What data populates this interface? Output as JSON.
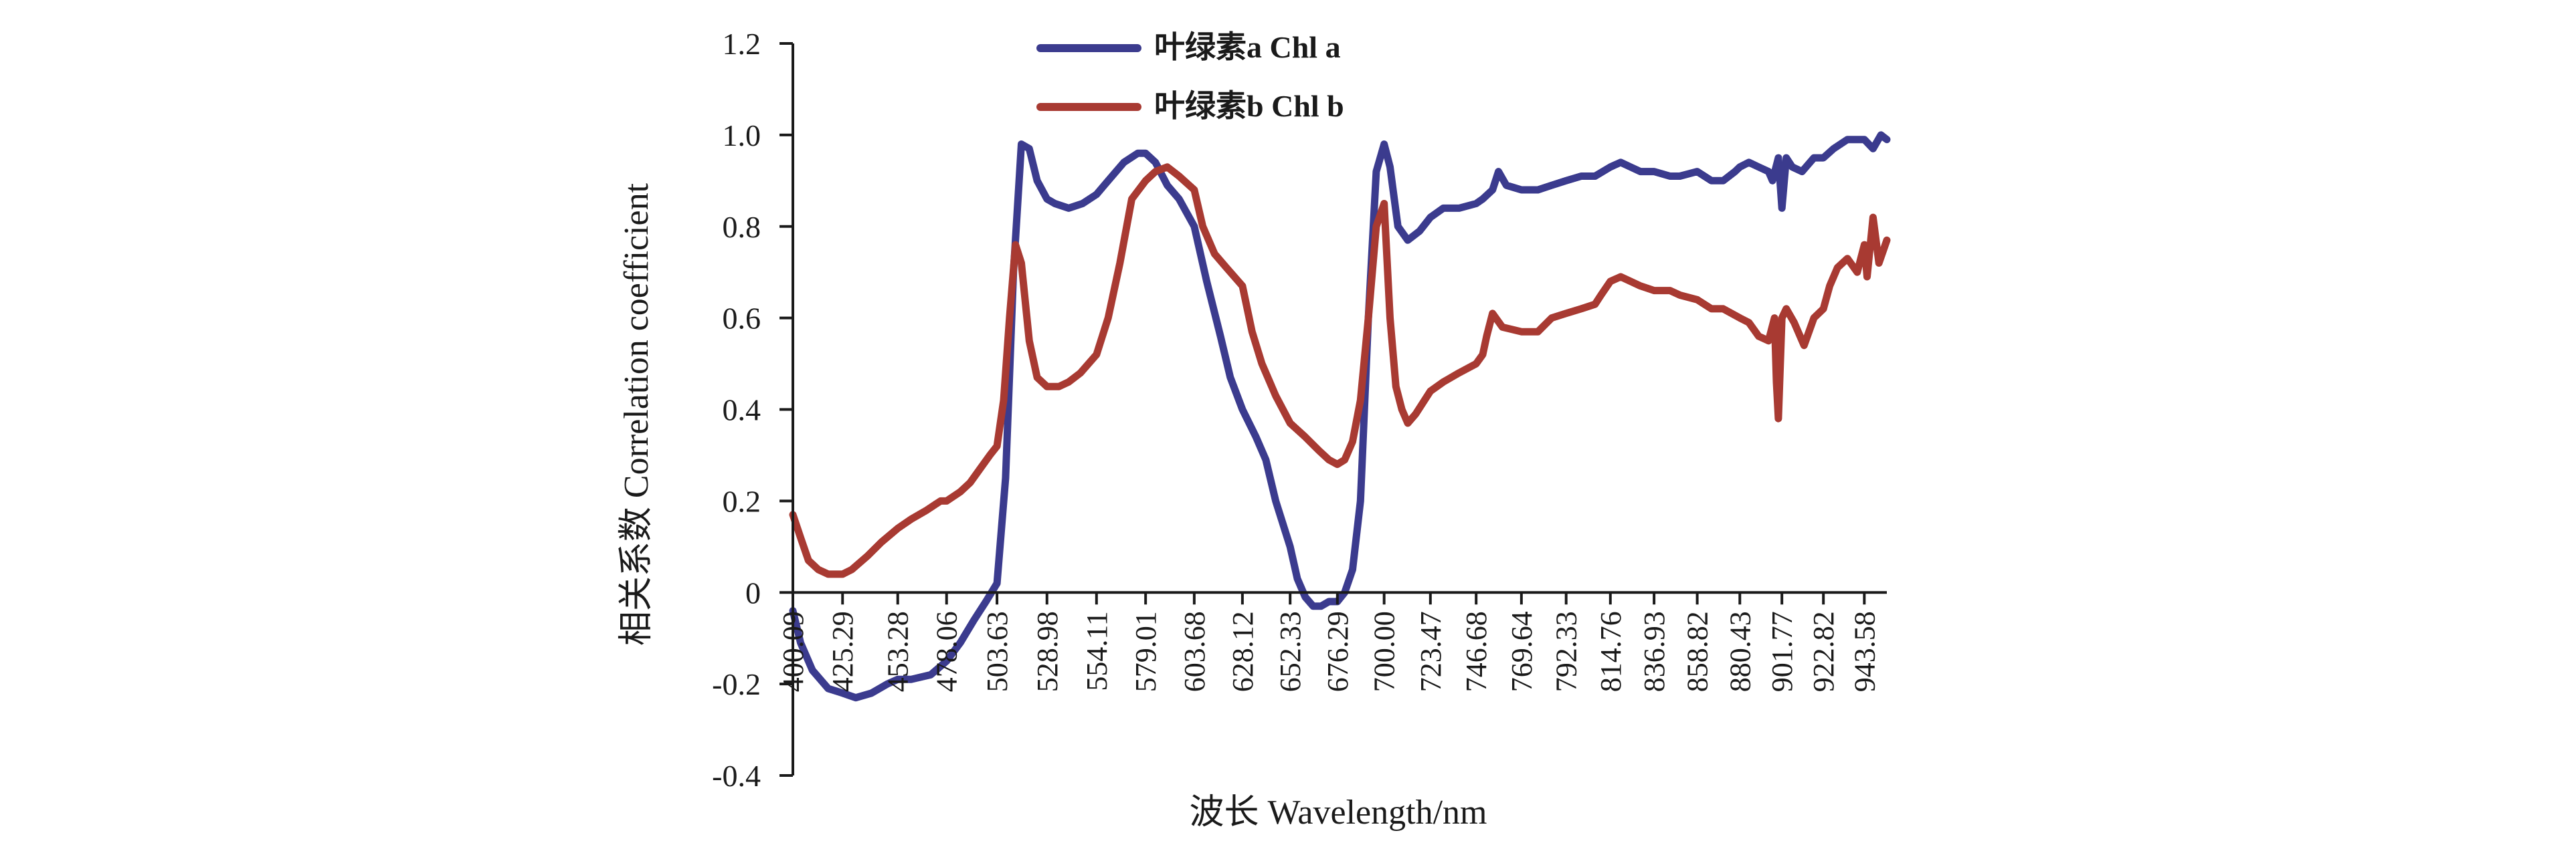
{
  "chart_data": {
    "type": "line",
    "title": "",
    "xlabel": "波长 Wavelength/nm",
    "ylabel": "相关系数 Correlation coefficient",
    "ylim": [
      -0.4,
      1.2
    ],
    "xlim": [
      400.09,
      955
    ],
    "y_ticks": [
      -0.4,
      -0.2,
      0,
      0.2,
      0.4,
      0.6,
      0.8,
      1.0,
      1.2
    ],
    "y_tick_labels": [
      "-0.4",
      "-0.2",
      "0",
      "0.2",
      "0.4",
      "0.6",
      "0.8",
      "1.0",
      "1.2"
    ],
    "x_ticks": [
      400.09,
      425.29,
      453.28,
      478.06,
      503.63,
      528.98,
      554.11,
      579.01,
      603.68,
      628.12,
      652.33,
      676.29,
      700.0,
      723.47,
      746.68,
      769.64,
      792.33,
      814.76,
      836.93,
      858.82,
      880.43,
      901.77,
      922.82,
      943.58
    ],
    "x_tick_labels": [
      "400.09",
      "425.29",
      "453.28",
      "478.06",
      "503.63",
      "528.98",
      "554.11",
      "579.01",
      "603.68",
      "628.12",
      "652.33",
      "676.29",
      "700.00",
      "723.47",
      "746.68",
      "769.64",
      "792.33",
      "814.76",
      "836.93",
      "858.82",
      "880.43",
      "901.77",
      "922.82",
      "943.58"
    ],
    "grid": false,
    "legend_position": "top-center",
    "series": [
      {
        "name": "叶绿素a Chl a",
        "color": "#3b3b8e",
        "x": [
          400.09,
          404,
          410,
          418,
          425.29,
          432,
          440,
          448,
          453.28,
          460,
          470,
          478.06,
          485,
          492,
          498,
          503.63,
          508,
          512,
          516,
          520,
          524,
          528.98,
          533,
          540,
          547,
          554.11,
          560,
          568,
          575,
          579.01,
          584,
          590,
          596,
          603.68,
          610,
          617,
          622,
          628.12,
          635,
          640,
          645,
          652.33,
          656,
          660,
          664,
          668,
          672,
          676.29,
          680,
          684,
          688,
          692,
          696,
          700.0,
          703,
          707,
          712,
          718,
          723.47,
          730,
          738,
          746.68,
          750,
          755,
          758,
          762,
          769.64,
          778,
          785,
          792.33,
          800,
          807,
          814.76,
          820,
          825,
          830,
          836.93,
          845,
          850,
          858.82,
          866,
          872,
          878,
          880.43,
          885,
          890,
          895,
          897,
          900,
          901.77,
          904,
          907,
          912,
          918,
          922.82,
          928,
          935,
          943.58,
          948,
          952,
          955
        ],
        "values": [
          -0.04,
          -0.11,
          -0.17,
          -0.21,
          -0.22,
          -0.23,
          -0.22,
          -0.2,
          -0.19,
          -0.19,
          -0.18,
          -0.15,
          -0.11,
          -0.06,
          -0.02,
          0.02,
          0.25,
          0.7,
          0.98,
          0.97,
          0.9,
          0.86,
          0.85,
          0.84,
          0.85,
          0.87,
          0.9,
          0.94,
          0.96,
          0.96,
          0.94,
          0.89,
          0.86,
          0.8,
          0.68,
          0.56,
          0.47,
          0.4,
          0.34,
          0.29,
          0.2,
          0.1,
          0.03,
          -0.01,
          -0.03,
          -0.03,
          -0.02,
          -0.02,
          0.0,
          0.05,
          0.2,
          0.6,
          0.92,
          0.98,
          0.93,
          0.8,
          0.77,
          0.79,
          0.82,
          0.84,
          0.84,
          0.85,
          0.86,
          0.88,
          0.92,
          0.89,
          0.88,
          0.88,
          0.89,
          0.9,
          0.91,
          0.91,
          0.93,
          0.94,
          0.93,
          0.92,
          0.92,
          0.91,
          0.91,
          0.92,
          0.9,
          0.9,
          0.92,
          0.93,
          0.94,
          0.93,
          0.92,
          0.9,
          0.95,
          0.84,
          0.95,
          0.93,
          0.92,
          0.95,
          0.95,
          0.97,
          0.99,
          0.99,
          0.97,
          1.0,
          0.99
        ]
      },
      {
        "name": "叶绿素b Chl b",
        "color": "#a83a32",
        "x": [
          400.09,
          404,
          408,
          413,
          418,
          425.29,
          430,
          438,
          445,
          453.28,
          460,
          468,
          475,
          478.06,
          485,
          490,
          495,
          500,
          503.63,
          507,
          510,
          513,
          516,
          520,
          524,
          528.98,
          535,
          540,
          546,
          554.11,
          560,
          566,
          572,
          579.01,
          584,
          590,
          596,
          603.68,
          608,
          614,
          620,
          628.12,
          633,
          638,
          645,
          652.33,
          660,
          667,
          672,
          676.29,
          680,
          684,
          688,
          692,
          696,
          700.0,
          703,
          706,
          709,
          712,
          716,
          723.47,
          730,
          738,
          746.68,
          750,
          752,
          755,
          760,
          769.64,
          778,
          785,
          792.33,
          800,
          807,
          810,
          814.76,
          820,
          825,
          830,
          836.93,
          845,
          850,
          858.82,
          866,
          872,
          880.43,
          885,
          890,
          895,
          898,
          899,
          900,
          901.77,
          904,
          908,
          913,
          918,
          922.82,
          926,
          930,
          935,
          940,
          943.58,
          945,
          948,
          951,
          955
        ],
        "values": [
          0.17,
          0.12,
          0.07,
          0.05,
          0.04,
          0.04,
          0.05,
          0.08,
          0.11,
          0.14,
          0.16,
          0.18,
          0.2,
          0.2,
          0.22,
          0.24,
          0.27,
          0.3,
          0.32,
          0.42,
          0.6,
          0.76,
          0.72,
          0.55,
          0.47,
          0.45,
          0.45,
          0.46,
          0.48,
          0.52,
          0.6,
          0.72,
          0.86,
          0.9,
          0.92,
          0.93,
          0.91,
          0.88,
          0.8,
          0.74,
          0.71,
          0.67,
          0.57,
          0.5,
          0.43,
          0.37,
          0.34,
          0.31,
          0.29,
          0.28,
          0.29,
          0.33,
          0.42,
          0.6,
          0.8,
          0.85,
          0.6,
          0.45,
          0.4,
          0.37,
          0.39,
          0.44,
          0.46,
          0.48,
          0.5,
          0.52,
          0.56,
          0.61,
          0.58,
          0.57,
          0.57,
          0.6,
          0.61,
          0.62,
          0.63,
          0.65,
          0.68,
          0.69,
          0.68,
          0.67,
          0.66,
          0.66,
          0.65,
          0.64,
          0.62,
          0.62,
          0.6,
          0.59,
          0.56,
          0.55,
          0.6,
          0.46,
          0.38,
          0.6,
          0.62,
          0.59,
          0.54,
          0.6,
          0.62,
          0.67,
          0.71,
          0.73,
          0.7,
          0.76,
          0.69,
          0.82,
          0.72,
          0.77
        ]
      }
    ]
  }
}
